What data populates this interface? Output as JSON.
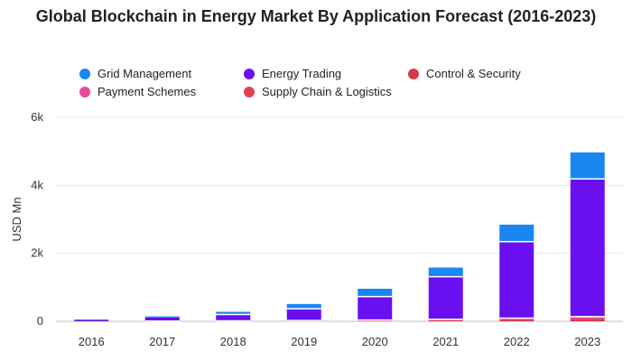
{
  "chart_data": {
    "type": "bar",
    "stacked": true,
    "title": "Global Blockchain in Energy Market By Application Forecast (2016-2023)",
    "ylabel": "USD Mn",
    "xlabel": "",
    "categories": [
      "2016",
      "2017",
      "2018",
      "2019",
      "2020",
      "2021",
      "2022",
      "2023"
    ],
    "ylim": [
      0,
      6000
    ],
    "yticks": [
      0,
      2000,
      4000,
      6000
    ],
    "ytick_labels": [
      "0",
      "2k",
      "4k",
      "6k"
    ],
    "grid": true,
    "legend_position": "top",
    "series": [
      {
        "name": "Control & Security",
        "color": "#d63a4a",
        "values": [
          2,
          4,
          7,
          12,
          20,
          32,
          50,
          75
        ]
      },
      {
        "name": "Payment Schemes",
        "color": "#e8479b",
        "values": [
          1,
          2,
          4,
          6,
          10,
          16,
          25,
          37
        ]
      },
      {
        "name": "Supply Chain & Logistics",
        "color": "#e0414f",
        "values": [
          1,
          2,
          3,
          5,
          8,
          12,
          18,
          26
        ]
      },
      {
        "name": "Energy Trading",
        "color": "#6a0ff0",
        "values": [
          40,
          100,
          185,
          345,
          690,
          1250,
          2250,
          4050
        ]
      },
      {
        "name": "Grid Management",
        "color": "#1a86f0",
        "values": [
          10,
          35,
          80,
          140,
          230,
          270,
          500,
          780
        ]
      }
    ],
    "legend_order": [
      "Grid Management",
      "Energy Trading",
      "Control & Security",
      "Payment Schemes",
      "Supply Chain & Logistics"
    ]
  }
}
